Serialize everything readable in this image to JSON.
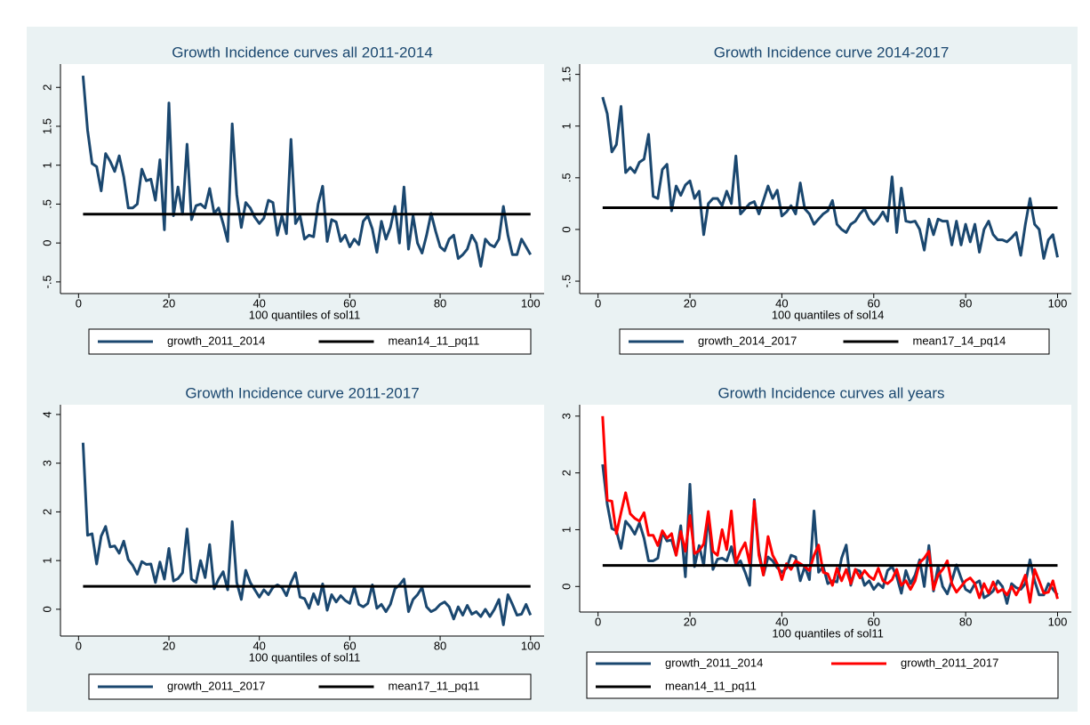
{
  "chart_data": [
    {
      "type": "line",
      "title": "Growth Incidence curves all 2011-2014",
      "xlabel": "100 quantiles of sol11",
      "x": [
        1,
        2,
        3,
        4,
        5,
        6,
        7,
        8,
        9,
        10,
        11,
        12,
        13,
        14,
        15,
        16,
        17,
        18,
        19,
        20,
        21,
        22,
        23,
        24,
        25,
        26,
        27,
        28,
        29,
        30,
        31,
        32,
        33,
        34,
        35,
        36,
        37,
        38,
        39,
        40,
        41,
        42,
        43,
        44,
        45,
        46,
        47,
        48,
        49,
        50,
        51,
        52,
        53,
        54,
        55,
        56,
        57,
        58,
        59,
        60,
        61,
        62,
        63,
        64,
        65,
        66,
        67,
        68,
        69,
        70,
        71,
        72,
        73,
        74,
        75,
        76,
        77,
        78,
        79,
        80,
        81,
        82,
        83,
        84,
        85,
        86,
        87,
        88,
        89,
        90,
        91,
        92,
        93,
        94,
        95,
        96,
        97,
        98,
        99,
        100
      ],
      "xlim": [
        -4,
        103
      ],
      "xticks": [
        0,
        20,
        40,
        60,
        80,
        100
      ],
      "ylim": [
        -0.65,
        2.3
      ],
      "yticks": [
        {
          "value": -0.5,
          "label": "-.5"
        },
        0,
        {
          "value": 0.5,
          "label": ".5"
        },
        1,
        1.5,
        2
      ],
      "series": [
        {
          "name": "growth_2011_2014",
          "color": "#1a476f",
          "values": [
            2.15,
            1.45,
            1.02,
            0.98,
            0.67,
            1.15,
            1.05,
            0.92,
            1.12,
            0.85,
            0.45,
            0.45,
            0.5,
            0.95,
            0.8,
            0.82,
            0.55,
            1.07,
            0.17,
            1.8,
            0.35,
            0.72,
            0.37,
            1.27,
            0.3,
            0.48,
            0.5,
            0.45,
            0.7,
            0.38,
            0.45,
            0.25,
            0.02,
            1.53,
            0.62,
            0.2,
            0.52,
            0.45,
            0.33,
            0.25,
            0.32,
            0.55,
            0.52,
            0.1,
            0.35,
            0.12,
            1.33,
            0.25,
            0.35,
            0.05,
            0.1,
            0.08,
            0.5,
            0.73,
            0.02,
            0.3,
            0.27,
            0.02,
            0.1,
            -0.05,
            0.05,
            -0.02,
            0.28,
            0.35,
            0.18,
            -0.12,
            0.28,
            0.05,
            0.2,
            0.47,
            0,
            0.72,
            -0.08,
            0.35,
            0,
            -0.13,
            0.1,
            0.38,
            0.15,
            -0.05,
            -0.1,
            0.05,
            0.1,
            -0.2,
            -0.15,
            -0.08,
            0.1,
            0,
            -0.3,
            0.05,
            -0.02,
            -0.05,
            0.05,
            0.47,
            0.1,
            -0.15,
            -0.15,
            0.05,
            -0.05,
            -0.15
          ]
        },
        {
          "name": "mean14_11_pq11",
          "color": "#000000",
          "value": 0.37
        }
      ]
    },
    {
      "type": "line",
      "title": "Growth Incidence curve 2014-2017",
      "xlabel": "100 quantiles of sol14",
      "x": [
        1,
        2,
        3,
        4,
        5,
        6,
        7,
        8,
        9,
        10,
        11,
        12,
        13,
        14,
        15,
        16,
        17,
        18,
        19,
        20,
        21,
        22,
        23,
        24,
        25,
        26,
        27,
        28,
        29,
        30,
        31,
        32,
        33,
        34,
        35,
        36,
        37,
        38,
        39,
        40,
        41,
        42,
        43,
        44,
        45,
        46,
        47,
        48,
        49,
        50,
        51,
        52,
        53,
        54,
        55,
        56,
        57,
        58,
        59,
        60,
        61,
        62,
        63,
        64,
        65,
        66,
        67,
        68,
        69,
        70,
        71,
        72,
        73,
        74,
        75,
        76,
        77,
        78,
        79,
        80,
        81,
        82,
        83,
        84,
        85,
        86,
        87,
        88,
        89,
        90,
        91,
        92,
        93,
        94,
        95,
        96,
        97,
        98,
        99,
        100
      ],
      "xlim": [
        -4,
        103
      ],
      "xticks": [
        0,
        20,
        40,
        60,
        80,
        100
      ],
      "ylim": [
        -0.62,
        1.6
      ],
      "yticks": [
        {
          "value": -0.5,
          "label": "-.5"
        },
        0,
        {
          "value": 0.5,
          "label": ".5"
        },
        1,
        1.5
      ],
      "series": [
        {
          "name": "growth_2014_2017",
          "color": "#1a476f",
          "values": [
            1.28,
            1.12,
            0.75,
            0.82,
            1.19,
            0.55,
            0.6,
            0.55,
            0.65,
            0.68,
            0.92,
            0.32,
            0.3,
            0.58,
            0.63,
            0.18,
            0.42,
            0.33,
            0.43,
            0.47,
            0.3,
            0.37,
            -0.05,
            0.25,
            0.3,
            0.3,
            0.23,
            0.37,
            0.25,
            0.71,
            0.15,
            0.2,
            0.25,
            0.27,
            0.15,
            0.28,
            0.42,
            0.3,
            0.38,
            0.13,
            0.17,
            0.23,
            0.15,
            0.45,
            0.2,
            0.15,
            0.05,
            0.1,
            0.15,
            0.18,
            0.28,
            0.05,
            0,
            -0.03,
            0.05,
            0.08,
            0.15,
            0.2,
            0.1,
            0.05,
            0.1,
            0.17,
            0.08,
            0.51,
            -0.03,
            0.4,
            0.08,
            0.07,
            0.08,
            0,
            -0.2,
            0.1,
            -0.05,
            0.1,
            0.08,
            0.08,
            -0.15,
            0.08,
            -0.15,
            0.05,
            -0.12,
            0.05,
            -0.22,
            0,
            0.08,
            -0.05,
            -0.1,
            -0.1,
            -0.12,
            -0.08,
            -0.03,
            -0.25,
            0.05,
            0.3,
            0.05,
            0,
            -0.28,
            -0.1,
            -0.05,
            -0.27
          ]
        },
        {
          "name": "mean17_14_pq14",
          "color": "#000000",
          "value": 0.21
        }
      ]
    },
    {
      "type": "line",
      "title": "Growth Incidence curve 2011-2017",
      "xlabel": "100 quantiles of sol11",
      "x": [
        1,
        2,
        3,
        4,
        5,
        6,
        7,
        8,
        9,
        10,
        11,
        12,
        13,
        14,
        15,
        16,
        17,
        18,
        19,
        20,
        21,
        22,
        23,
        24,
        25,
        26,
        27,
        28,
        29,
        30,
        31,
        32,
        33,
        34,
        35,
        36,
        37,
        38,
        39,
        40,
        41,
        42,
        43,
        44,
        45,
        46,
        47,
        48,
        49,
        50,
        51,
        52,
        53,
        54,
        55,
        56,
        57,
        58,
        59,
        60,
        61,
        62,
        63,
        64,
        65,
        66,
        67,
        68,
        69,
        70,
        71,
        72,
        73,
        74,
        75,
        76,
        77,
        78,
        79,
        80,
        81,
        82,
        83,
        84,
        85,
        86,
        87,
        88,
        89,
        90,
        91,
        92,
        93,
        94,
        95,
        96,
        97,
        98,
        99,
        100
      ],
      "xlim": [
        -4,
        103
      ],
      "xticks": [
        0,
        20,
        40,
        60,
        80,
        100
      ],
      "ylim": [
        -0.55,
        4.2
      ],
      "yticks": [
        0,
        1,
        2,
        3,
        4
      ],
      "series": [
        {
          "name": "growth_2011_2017",
          "color": "#1a476f",
          "values": [
            3.42,
            1.52,
            1.55,
            0.93,
            1.5,
            1.7,
            1.28,
            1.3,
            1.15,
            1.4,
            1.02,
            0.9,
            0.72,
            0.98,
            0.92,
            0.93,
            0.55,
            0.97,
            0.62,
            1.25,
            0.58,
            0.63,
            0.75,
            1.65,
            0.62,
            0.55,
            1,
            0.65,
            1.33,
            0.42,
            0.62,
            0.77,
            0.4,
            1.8,
            0.55,
            0.2,
            0.8,
            0.55,
            0.4,
            0.25,
            0.4,
            0.3,
            0.45,
            0.5,
            0.45,
            0.28,
            0.55,
            0.75,
            0.25,
            0.22,
            0.02,
            0.32,
            0.1,
            0.52,
            -0.02,
            0.3,
            0.15,
            0.28,
            0.18,
            0.12,
            0.45,
            0.1,
            0.05,
            0.12,
            0.5,
            0.02,
            0.1,
            -0.05,
            0.1,
            0.42,
            0.5,
            0.62,
            -0.05,
            0.2,
            0.3,
            0.45,
            0.05,
            -0.05,
            0,
            0.1,
            0.15,
            0.05,
            -0.2,
            0.05,
            -0.12,
            0.08,
            -0.1,
            -0.05,
            -0.15,
            0,
            -0.15,
            0,
            0.2,
            -0.32,
            0.3,
            0.1,
            -0.12,
            -0.1,
            0.1,
            -0.12
          ]
        },
        {
          "name": "mean17_11_pq11",
          "color": "#000000",
          "value": 0.47
        }
      ]
    },
    {
      "type": "line",
      "title": "Growth Incidence curves all years",
      "xlabel": "100 quantiles of sol11",
      "x": [
        1,
        2,
        3,
        4,
        5,
        6,
        7,
        8,
        9,
        10,
        11,
        12,
        13,
        14,
        15,
        16,
        17,
        18,
        19,
        20,
        21,
        22,
        23,
        24,
        25,
        26,
        27,
        28,
        29,
        30,
        31,
        32,
        33,
        34,
        35,
        36,
        37,
        38,
        39,
        40,
        41,
        42,
        43,
        44,
        45,
        46,
        47,
        48,
        49,
        50,
        51,
        52,
        53,
        54,
        55,
        56,
        57,
        58,
        59,
        60,
        61,
        62,
        63,
        64,
        65,
        66,
        67,
        68,
        69,
        70,
        71,
        72,
        73,
        74,
        75,
        76,
        77,
        78,
        79,
        80,
        81,
        82,
        83,
        84,
        85,
        86,
        87,
        88,
        89,
        90,
        91,
        92,
        93,
        94,
        95,
        96,
        97,
        98,
        99,
        100
      ],
      "xlim": [
        -4,
        103
      ],
      "xticks": [
        0,
        20,
        40,
        60,
        80,
        100
      ],
      "ylim": [
        -0.45,
        3.2
      ],
      "yticks": [
        0,
        1,
        2,
        3
      ],
      "series": [
        {
          "name": "growth_2011_2014",
          "color": "#1a476f",
          "values": [
            2.15,
            1.45,
            1.02,
            0.98,
            0.67,
            1.15,
            1.05,
            0.92,
            1.12,
            0.85,
            0.45,
            0.45,
            0.5,
            0.95,
            0.8,
            0.82,
            0.55,
            1.07,
            0.17,
            1.8,
            0.35,
            0.72,
            0.37,
            1.27,
            0.3,
            0.48,
            0.5,
            0.45,
            0.7,
            0.38,
            0.45,
            0.25,
            0.02,
            1.53,
            0.62,
            0.2,
            0.52,
            0.45,
            0.33,
            0.25,
            0.32,
            0.55,
            0.52,
            0.1,
            0.35,
            0.12,
            1.33,
            0.25,
            0.35,
            0.05,
            0.1,
            0.08,
            0.5,
            0.73,
            0.02,
            0.3,
            0.27,
            0.02,
            0.1,
            -0.05,
            0.05,
            -0.02,
            0.28,
            0.35,
            0.18,
            -0.12,
            0.28,
            0.05,
            0.2,
            0.47,
            0,
            0.72,
            -0.08,
            0.35,
            0,
            -0.13,
            0.1,
            0.38,
            0.15,
            -0.05,
            -0.1,
            0.05,
            0.1,
            -0.2,
            -0.15,
            -0.08,
            0.1,
            0,
            -0.3,
            0.05,
            -0.02,
            -0.05,
            0.05,
            0.47,
            0.1,
            -0.15,
            -0.15,
            0.05,
            -0.05,
            -0.15
          ]
        },
        {
          "name": "growth_2011_2017",
          "color": "#ff0000",
          "values": [
            3.0,
            1.52,
            1.5,
            0.93,
            1.3,
            1.65,
            1.28,
            1.2,
            1.15,
            1.3,
            0.9,
            0.9,
            0.72,
            0.98,
            0.85,
            0.93,
            0.55,
            0.97,
            0.62,
            1.25,
            0.58,
            0.63,
            0.75,
            1.32,
            0.62,
            0.55,
            1,
            0.65,
            1.33,
            0.42,
            0.62,
            0.77,
            0.4,
            1.5,
            0.55,
            0.2,
            0.88,
            0.55,
            0.4,
            0.12,
            0.4,
            0.3,
            0.45,
            0.4,
            0.35,
            0.28,
            0.55,
            0.73,
            0.25,
            0.22,
            0.02,
            0.32,
            0.1,
            0.3,
            0.05,
            0.3,
            0.15,
            0.28,
            0.18,
            0.12,
            0.32,
            0.1,
            0.05,
            0.12,
            0.3,
            0.02,
            0.1,
            -0.05,
            0.1,
            0.42,
            0.5,
            0.62,
            -0.05,
            0.2,
            0.3,
            0.45,
            0.05,
            -0.1,
            0,
            0.1,
            0.15,
            0.05,
            -0.2,
            0.05,
            -0.12,
            0.08,
            -0.1,
            -0.05,
            -0.15,
            0,
            -0.15,
            0,
            0.2,
            -0.28,
            0.3,
            0.1,
            -0.12,
            -0.1,
            0.1,
            -0.22
          ]
        },
        {
          "name": "mean14_11_pq11",
          "color": "#000000",
          "value": 0.37
        }
      ]
    }
  ]
}
